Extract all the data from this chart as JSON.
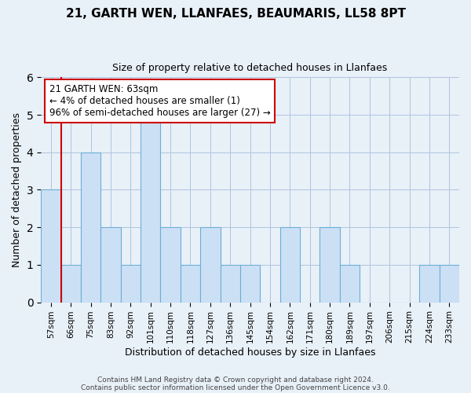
{
  "title_line1": "21, GARTH WEN, LLANFAES, BEAUMARIS, LL58 8PT",
  "title_line2": "Size of property relative to detached houses in Llanfaes",
  "xlabel": "Distribution of detached houses by size in Llanfaes",
  "ylabel": "Number of detached properties",
  "bar_labels": [
    "57sqm",
    "66sqm",
    "75sqm",
    "83sqm",
    "92sqm",
    "101sqm",
    "110sqm",
    "118sqm",
    "127sqm",
    "136sqm",
    "145sqm",
    "154sqm",
    "162sqm",
    "171sqm",
    "180sqm",
    "189sqm",
    "197sqm",
    "206sqm",
    "215sqm",
    "224sqm",
    "233sqm"
  ],
  "bar_values": [
    3,
    1,
    4,
    2,
    1,
    5,
    2,
    1,
    2,
    1,
    1,
    0,
    2,
    0,
    2,
    1,
    0,
    0,
    0,
    1,
    1
  ],
  "bar_color": "#cce0f5",
  "bar_edge_color": "#6aaed6",
  "annotation_line1": "21 GARTH WEN: 63sqm",
  "annotation_line2": "← 4% of detached houses are smaller (1)",
  "annotation_line3": "96% of semi-detached houses are larger (27) →",
  "annotation_box_color": "#ffffff",
  "annotation_border_color": "#cc0000",
  "marker_color": "#cc0000",
  "ylim": [
    0,
    6
  ],
  "yticks": [
    0,
    1,
    2,
    3,
    4,
    5,
    6
  ],
  "background_color": "#e8f0f8",
  "footer_line1": "Contains HM Land Registry data © Crown copyright and database right 2024.",
  "footer_line2": "Contains public sector information licensed under the Open Government Licence v3.0."
}
